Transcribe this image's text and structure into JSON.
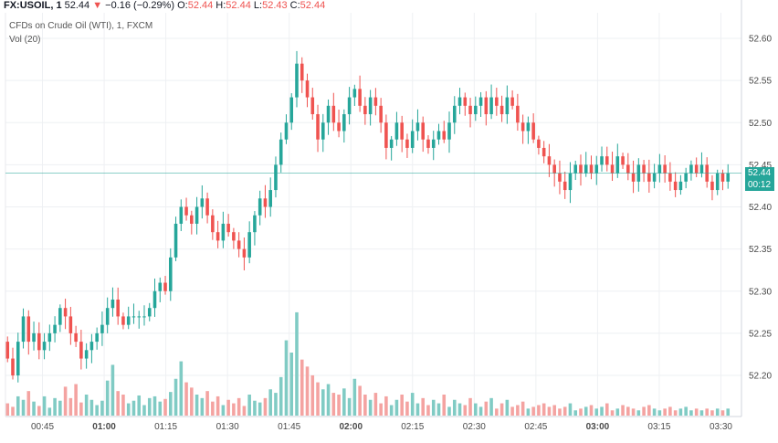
{
  "header": {
    "symbol": "FX:USOIL, 1",
    "last": "52.44",
    "change_arrow": "▼",
    "change": "−0.16 (−0.29%)",
    "o_label": "O:",
    "o": "52.44",
    "h_label": "H:",
    "h": "52.44",
    "l_label": "L:",
    "l": "52.43",
    "c_label": "C:",
    "c": "52.44",
    "subtitle": "CFDs on Crude Oil (WTI), 1, FXCM",
    "volume_label": "Vol (20)"
  },
  "price_tag": {
    "price": "52.44",
    "countdown": "00:12"
  },
  "colors": {
    "up": "#26a69a",
    "down": "#ef5350",
    "vol_up": "#80cbc4",
    "vol_down": "#f4a3a1",
    "grid": "#eef0f3",
    "axis_text": "#4a4a4a",
    "price_line": "#26a69a"
  },
  "chart_data": {
    "type": "candlestick",
    "title": "FX:USOIL, 1",
    "subtitle": "CFDs on Crude Oil (WTI), 1, FXCM",
    "ylim": [
      52.15,
      52.63
    ],
    "yticks": [
      52.2,
      52.25,
      52.3,
      52.35,
      52.4,
      52.45,
      52.5,
      52.55,
      52.6
    ],
    "ytick_labels": [
      "52.20",
      "52.25",
      "52.30",
      "52.35",
      "52.40",
      "52.45",
      "52.50",
      "52.55",
      "52.60"
    ],
    "x_start_minutes": 36,
    "x_end_minutes": 215,
    "xticks_minutes": [
      45,
      60,
      75,
      90,
      105,
      120,
      135,
      150,
      165,
      180,
      195,
      210
    ],
    "xtick_labels": [
      "00:45",
      "01:00",
      "01:15",
      "01:30",
      "01:45",
      "02:00",
      "02:15",
      "02:30",
      "02:45",
      "03:00",
      "03:15",
      "03:30"
    ],
    "bold_xticks": [
      "01:00",
      "02:00",
      "03:00"
    ],
    "current_price": 52.44,
    "ohlc_path": [
      52.24,
      52.22,
      52.2,
      52.24,
      52.27,
      52.24,
      52.25,
      52.23,
      52.24,
      52.25,
      52.26,
      52.28,
      52.27,
      52.25,
      52.24,
      52.22,
      52.23,
      52.24,
      52.25,
      52.26,
      52.28,
      52.29,
      52.27,
      52.26,
      52.27,
      52.27,
      52.27,
      52.27,
      52.28,
      52.3,
      52.31,
      52.3,
      52.34,
      52.38,
      52.4,
      52.39,
      52.38,
      52.4,
      52.41,
      52.39,
      52.37,
      52.36,
      52.38,
      52.37,
      52.36,
      52.35,
      52.34,
      52.37,
      52.39,
      52.41,
      52.4,
      52.42,
      52.45,
      52.48,
      52.5,
      52.53,
      52.57,
      52.55,
      52.53,
      52.51,
      52.48,
      52.5,
      52.52,
      52.5,
      52.49,
      52.51,
      52.53,
      52.54,
      52.52,
      52.51,
      52.53,
      52.52,
      52.5,
      52.47,
      52.48,
      52.5,
      52.48,
      52.47,
      52.49,
      52.5,
      52.48,
      52.47,
      52.48,
      52.49,
      52.48,
      52.5,
      52.52,
      52.53,
      52.52,
      52.51,
      52.52,
      52.53,
      52.51,
      52.53,
      52.52,
      52.51,
      52.53,
      52.52,
      52.5,
      52.49,
      52.5,
      52.48,
      52.47,
      52.46,
      52.45,
      52.44,
      52.43,
      52.42,
      52.44,
      52.45,
      52.44,
      52.45,
      52.44,
      52.45,
      52.46,
      52.45,
      52.44,
      52.46,
      52.45,
      52.44,
      52.43,
      52.45,
      52.44,
      52.43,
      52.44,
      52.45,
      52.44,
      52.43,
      52.42,
      52.43,
      52.44,
      52.45,
      52.44,
      52.45,
      52.43,
      52.42,
      52.44,
      52.43,
      52.44
    ],
    "volume_max": 120,
    "volume_base": [
      14,
      10,
      22,
      18,
      28,
      16,
      11,
      22,
      9,
      20,
      17,
      33,
      20,
      36,
      15,
      24,
      18,
      12,
      17,
      40,
      58,
      28,
      24,
      14,
      17,
      23,
      12,
      20,
      22,
      16,
      19,
      27,
      42,
      62,
      38,
      32,
      24,
      20,
      28,
      16,
      22,
      12,
      18,
      14,
      20,
      11,
      24,
      17,
      15,
      20,
      30,
      26,
      44,
      86,
      72,
      118,
      64,
      56,
      46,
      38,
      30,
      36,
      26,
      24,
      31,
      20,
      42,
      34,
      24,
      18,
      26,
      14,
      22,
      12,
      18,
      24,
      16,
      26,
      14,
      20,
      12,
      18,
      14,
      24,
      10,
      18,
      14,
      12,
      20,
      14,
      10,
      16,
      20,
      8,
      14,
      18,
      10,
      12,
      16,
      8,
      10,
      12,
      14,
      10,
      12,
      8,
      10,
      14,
      6,
      8,
      10,
      12,
      8,
      10,
      14,
      6,
      8,
      12,
      10,
      8,
      6,
      10,
      12,
      8,
      6,
      8,
      10,
      6,
      8,
      10,
      6,
      8,
      6,
      8,
      6,
      8,
      6,
      8,
      10,
      6
    ]
  }
}
